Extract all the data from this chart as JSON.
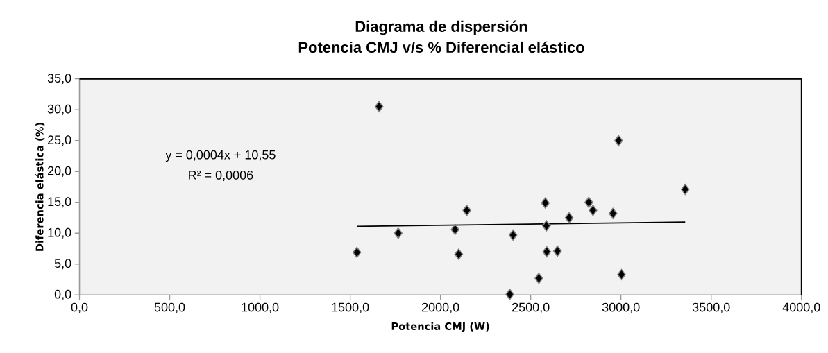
{
  "chart_data": {
    "type": "scatter",
    "title": "Diagrama de dispersión",
    "subtitle": "Potencia CMJ v/s % Diferencial elástico",
    "xlabel": "Potencia CMJ (W)",
    "ylabel": "Diferencia elástica (%)",
    "xlim": [
      0,
      4000
    ],
    "ylim": [
      0,
      35
    ],
    "xticks": [
      {
        "value": 0,
        "label": "0,0"
      },
      {
        "value": 500,
        "label": "500,0"
      },
      {
        "value": 1000,
        "label": "1000,0"
      },
      {
        "value": 1500,
        "label": "1500,0"
      },
      {
        "value": 2000,
        "label": "2000,0"
      },
      {
        "value": 2500,
        "label": "2500,0"
      },
      {
        "value": 3000,
        "label": "3000,0"
      },
      {
        "value": 3500,
        "label": "3500,0"
      },
      {
        "value": 4000,
        "label": "4000,0"
      }
    ],
    "yticks": [
      {
        "value": 0,
        "label": "0,0"
      },
      {
        "value": 5,
        "label": "5,0"
      },
      {
        "value": 10,
        "label": "10,0"
      },
      {
        "value": 15,
        "label": "15,0"
      },
      {
        "value": 20,
        "label": "20,0"
      },
      {
        "value": 25,
        "label": "25,0"
      },
      {
        "value": 30,
        "label": "30,0"
      },
      {
        "value": 35,
        "label": "35,0"
      }
    ],
    "series": [
      {
        "color": "#000000",
        "marker": "diamond",
        "x": [
          1537,
          1660,
          1766,
          2081,
          2101,
          2146,
          2384,
          2402,
          2545,
          2581,
          2587,
          2589,
          2648,
          2713,
          2822,
          2845,
          2956,
          2987,
          3003,
          3356
        ],
        "values": [
          6.9,
          30.5,
          10.0,
          10.6,
          6.6,
          13.7,
          0.1,
          9.7,
          2.7,
          14.9,
          11.2,
          7.0,
          7.1,
          12.5,
          15.0,
          13.7,
          13.2,
          25.0,
          3.3,
          17.1
        ]
      },
      {
        "type": "line",
        "color": "#000000",
        "marker": "none",
        "x": [
          1537,
          3356
        ],
        "values": [
          11.1,
          11.8
        ]
      }
    ],
    "annotations": [
      "y = 0,0004x + 10,55",
      "R² = 0,0006"
    ]
  }
}
